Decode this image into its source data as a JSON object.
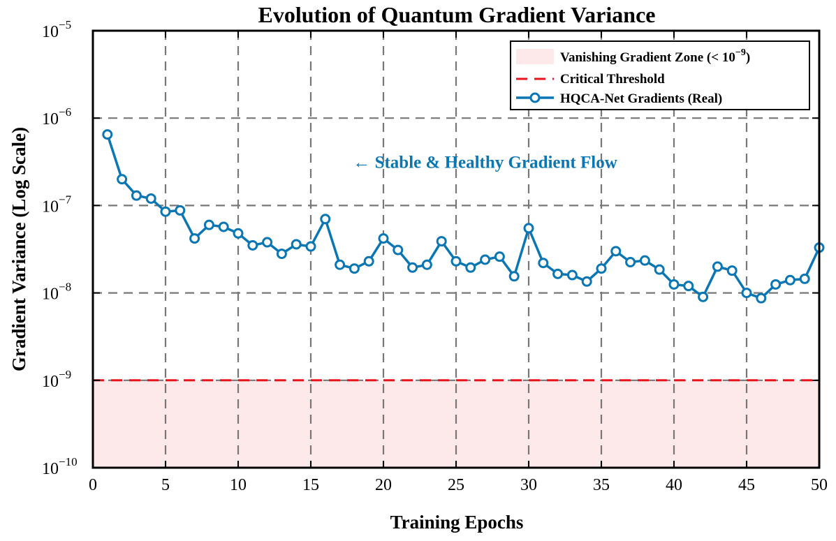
{
  "chart_data": {
    "type": "line",
    "title": "Evolution of Quantum Gradient Variance",
    "xlabel": "Training Epochs",
    "ylabel": "Gradient Variance (Log Scale)",
    "yscale": "log",
    "xlim": [
      0,
      50
    ],
    "ylim": [
      1e-10,
      1e-05
    ],
    "grid": true,
    "legend_position": "top-right",
    "x_ticks": [
      0,
      5,
      10,
      15,
      20,
      25,
      30,
      35,
      40,
      45,
      50
    ],
    "y_ticks": [
      {
        "value": 1e-10,
        "base": "10",
        "exp": "−10"
      },
      {
        "value": 1e-09,
        "base": "10",
        "exp": "−9"
      },
      {
        "value": 1e-08,
        "base": "10",
        "exp": "−8"
      },
      {
        "value": 1e-07,
        "base": "10",
        "exp": "−7"
      },
      {
        "value": 1e-06,
        "base": "10",
        "exp": "−6"
      },
      {
        "value": 1e-05,
        "base": "10",
        "exp": "−5"
      }
    ],
    "legend": {
      "zone_label": "Vanishing Gradient Zone (< 10",
      "zone_exp": "−9",
      "zone_close": ")",
      "threshold_label": "Critical Threshold",
      "series_label": "HQCA-Net Gradients (Real)"
    },
    "vanishing_zone": {
      "from": 1e-10,
      "to": 1e-09
    },
    "threshold": 1e-09,
    "annotation": {
      "text": "← Stable & Healthy Gradient Flow",
      "x": 17.9,
      "y": 2.7e-07
    },
    "series": [
      {
        "name": "HQCA-Net Gradients (Real)",
        "x": [
          1,
          2,
          3,
          4,
          5,
          6,
          7,
          8,
          9,
          10,
          11,
          12,
          13,
          14,
          15,
          16,
          17,
          18,
          19,
          20,
          21,
          22,
          23,
          24,
          25,
          26,
          27,
          28,
          29,
          30,
          31,
          32,
          33,
          34,
          35,
          36,
          37,
          38,
          39,
          40,
          41,
          42,
          43,
          44,
          45,
          46,
          47,
          48,
          49,
          50
        ],
        "values": [
          6.5e-07,
          2e-07,
          1.3e-07,
          1.2e-07,
          8.5e-08,
          8.8e-08,
          4.2e-08,
          6e-08,
          5.7e-08,
          4.8e-08,
          3.5e-08,
          3.8e-08,
          2.8e-08,
          3.6e-08,
          3.4e-08,
          7e-08,
          2.1e-08,
          1.9e-08,
          2.3e-08,
          4.2e-08,
          3.1e-08,
          1.95e-08,
          2.1e-08,
          3.9e-08,
          2.3e-08,
          1.95e-08,
          2.4e-08,
          2.6e-08,
          1.55e-08,
          5.5e-08,
          2.2e-08,
          1.65e-08,
          1.6e-08,
          1.35e-08,
          1.9e-08,
          3e-08,
          2.25e-08,
          2.35e-08,
          1.85e-08,
          1.25e-08,
          1.2e-08,
          9e-09,
          2e-08,
          1.8e-08,
          1e-08,
          8.7e-09,
          1.25e-08,
          1.4e-08,
          1.45e-08,
          3.3e-08
        ]
      }
    ],
    "colors": {
      "line": "#0a77b4",
      "threshold": "#e8141b",
      "zone": "#fde8ea",
      "grid": "#777777",
      "annotation": "#0a77b4"
    }
  }
}
